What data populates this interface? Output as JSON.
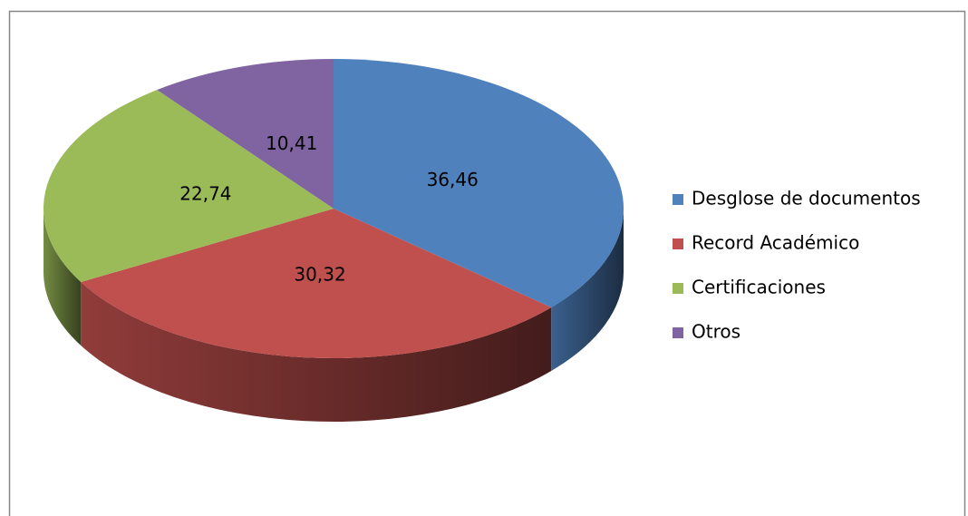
{
  "chart_data": {
    "type": "pie",
    "categories": [
      "Desglose de documentos",
      "Record Académico",
      "Certificaciones",
      "Otros"
    ],
    "values": [
      36.46,
      30.32,
      22.74,
      10.41
    ],
    "value_labels": [
      "36,46",
      "30,32",
      "22,74",
      "10,41"
    ],
    "colors": [
      "#4f81bd",
      "#c0504d",
      "#9bbb59",
      "#8064a2"
    ],
    "legend": "right"
  }
}
